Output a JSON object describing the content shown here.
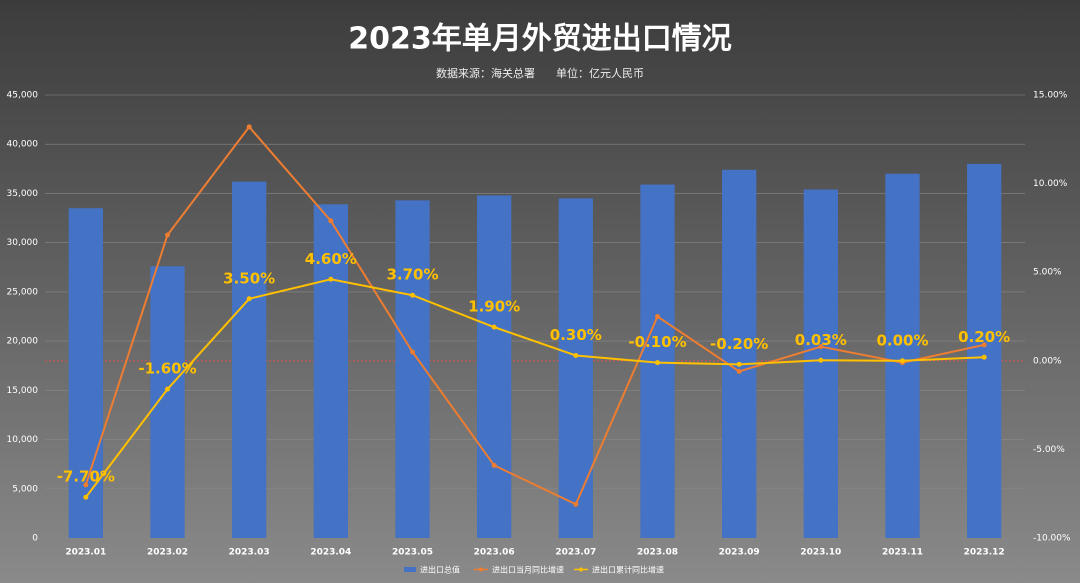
{
  "chart_data": {
    "type": "bar-line",
    "title": "2023年单月外贸进出口情况",
    "subtitle": "数据来源：海关总署      单位：亿元人民币",
    "categories": [
      "2023.01",
      "2023.02",
      "2023.03",
      "2023.04",
      "2023.05",
      "2023.06",
      "2023.07",
      "2023.08",
      "2023.09",
      "2023.10",
      "2023.11",
      "2023.12"
    ],
    "series": [
      {
        "name": "进出口总值",
        "type": "bar",
        "color": "#4472c4",
        "values": [
          33500,
          27600,
          36200,
          33900,
          34300,
          34800,
          34500,
          35900,
          37400,
          35400,
          37000,
          38000
        ]
      },
      {
        "name": "进出口当月同比增速",
        "type": "line",
        "axis": "y2",
        "color": "#ed7d31",
        "values": [
          -7.0,
          7.1,
          13.2,
          7.9,
          0.5,
          -5.9,
          -8.1,
          2.5,
          -0.6,
          0.8,
          -0.1,
          0.9
        ]
      },
      {
        "name": "进出口累计同比增速",
        "type": "line",
        "axis": "y2",
        "color": "#ffc000",
        "values": [
          -7.7,
          -1.6,
          3.5,
          4.6,
          3.7,
          1.9,
          0.3,
          -0.1,
          -0.2,
          0.03,
          0.0,
          0.2
        ],
        "value_labels": [
          "-7.70%",
          "-1.60%",
          "3.50%",
          "4.60%",
          "3.70%",
          "1.90%",
          "0.30%",
          "-0.10%",
          "-0.20%",
          "0.03%",
          "0.00%",
          "0.20%"
        ]
      }
    ],
    "ylim": [
      0,
      45000
    ],
    "yticks": [
      0,
      {
        "value": 5000,
        "label": "5,000"
      },
      {
        "value": 10000,
        "label": "10,000"
      },
      {
        "value": 15000,
        "label": "15,000"
      },
      {
        "value": 20000,
        "label": "20,000"
      },
      {
        "value": 25000,
        "label": "25,000"
      },
      {
        "value": 30000,
        "label": "30,000"
      },
      {
        "value": 35000,
        "label": "35,000"
      },
      {
        "value": 40000,
        "label": "40,000"
      },
      {
        "value": 45000,
        "label": "45,000"
      }
    ],
    "y2lim": [
      -10,
      15
    ],
    "y2ticks": [
      {
        "value": -10,
        "label": "-10.00%"
      },
      {
        "value": -5,
        "label": "-5.00%"
      },
      {
        "value": 0,
        "label": "0.00%"
      },
      {
        "value": 5,
        "label": "5.00%"
      },
      {
        "value": 10,
        "label": "10.00%"
      },
      {
        "value": 15,
        "label": "15.00%"
      }
    ],
    "grid": true
  }
}
